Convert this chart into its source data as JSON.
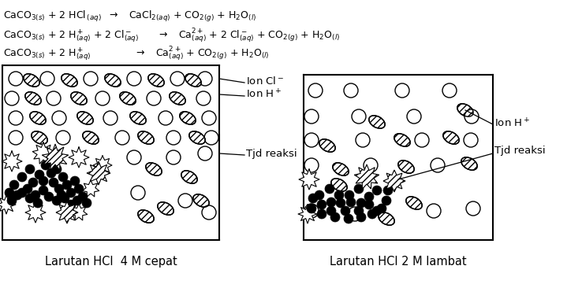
{
  "bg_color": "#ffffff",
  "fig_width": 7.38,
  "fig_height": 3.66,
  "label_4M": "Larutan HCl  4 M cepat",
  "label_2M": "Larutan HCl 2 M lambat",
  "eq1": "CaCO$_{3(s)}$ + 2 HCl$_{\\,(aq)}$  $\\rightarrow$   CaCl$_{2(aq)}$ + CO$_{2(g)}$ + H$_2$O$_{(l)}$",
  "eq2": "CaCO$_{3(s)}$ + 2 H$^+_{(aq)}$ + 2 Cl$^-_{(aq)}$      $\\rightarrow$   Ca$^{2+}_{(aq)}$ + 2 Cl$^-_{(aq)}$ + CO$_{2(g)}$ + H$_2$O$_{(l)}$",
  "eq3": "CaCO$_{3(s)}$ + 2 H$^+_{(aq)}$              $\\rightarrow$   Ca$^{2+}_{(aq)}$ + CO$_{2(g)}$ + H$_2$O$_{(l)}$"
}
